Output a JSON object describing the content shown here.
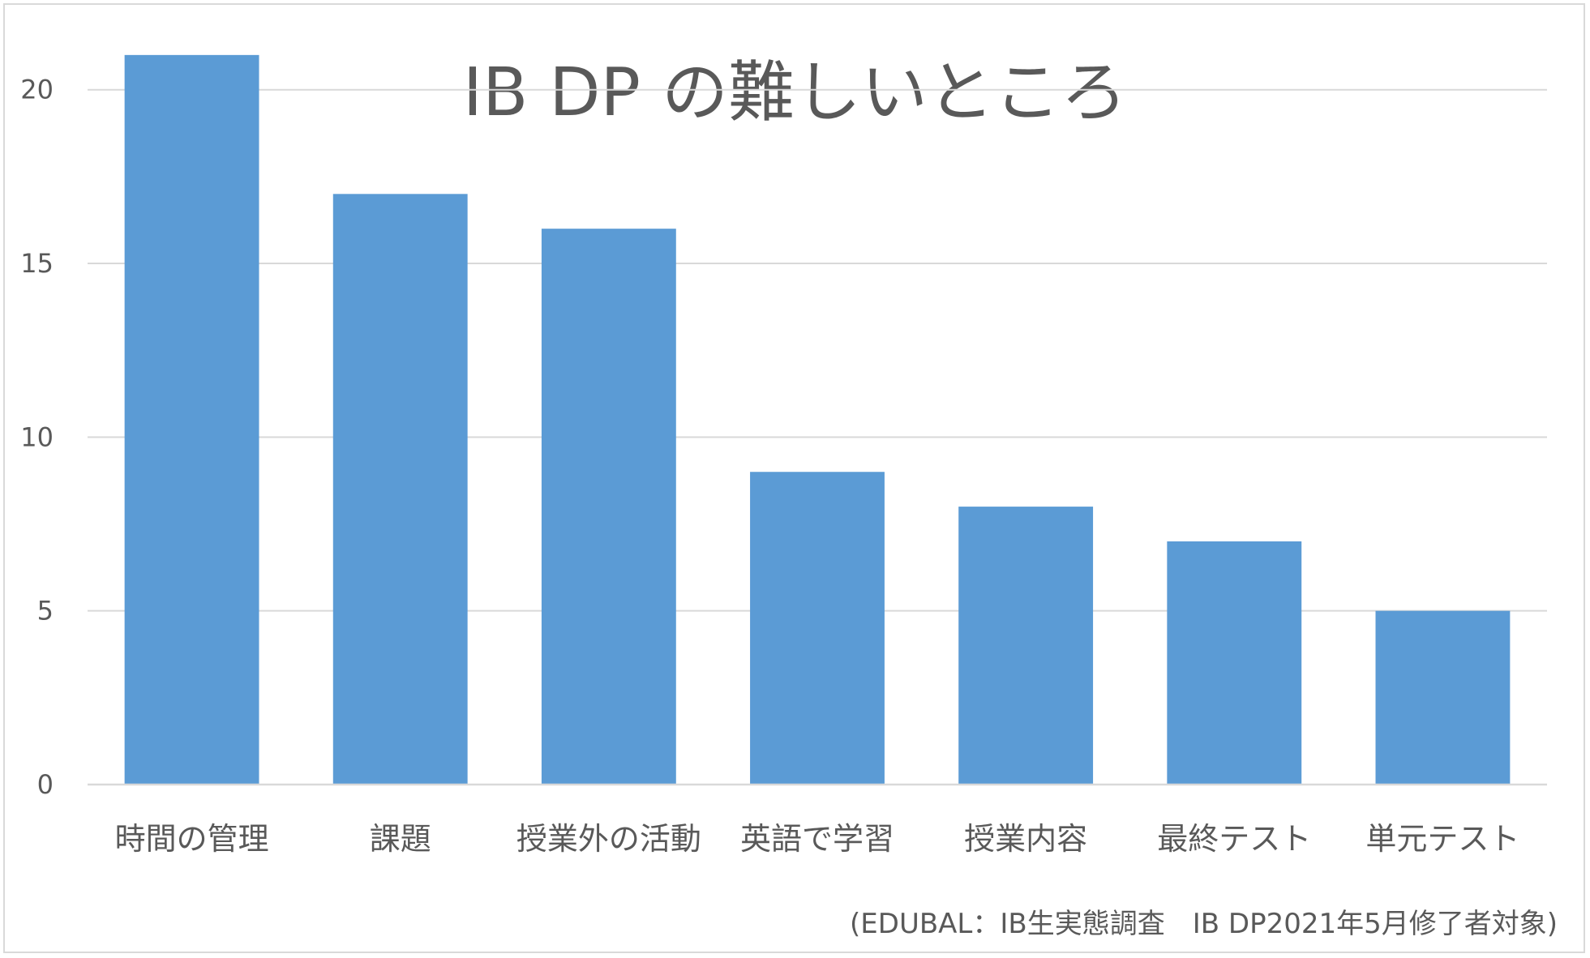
{
  "chart_data": {
    "type": "bar",
    "title": "IB DP の難しいところ",
    "categories": [
      "時間の管理",
      "課題",
      "授業外の活動",
      "英語で学習",
      "授業内容",
      "最終テスト",
      "単元テスト"
    ],
    "values": [
      21,
      17,
      16,
      9,
      8,
      7,
      5
    ],
    "yticks": [
      "0",
      "5",
      "10",
      "15",
      "20"
    ],
    "ylim": [
      0,
      22
    ],
    "xlabel": "",
    "ylabel": "",
    "grid": true,
    "legend": "none",
    "bar_color": "#5b9bd5",
    "grid_color": "#d9d9d9",
    "axis_color": "#d9d9d9"
  },
  "source": "(EDUBAL：IB生実態調査　IB DP2021年5月修了者対象)"
}
